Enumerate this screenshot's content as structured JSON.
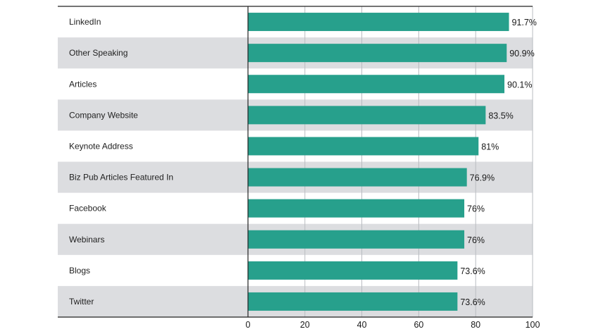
{
  "chart_data": {
    "type": "bar",
    "orientation": "horizontal",
    "categories": [
      "LinkedIn",
      "Other Speaking",
      "Articles",
      "Company Website",
      "Keynote Address",
      "Biz Pub Articles Featured In",
      "Facebook",
      "Webinars",
      "Blogs",
      "Twitter"
    ],
    "values": [
      91.7,
      90.9,
      90.1,
      83.5,
      81,
      76.9,
      76,
      76,
      73.6,
      73.6
    ],
    "value_labels": [
      "91.7%",
      "90.9%",
      "90.1%",
      "83.5%",
      "81%",
      "76.9%",
      "76%",
      "76%",
      "73.6%",
      "73.6%"
    ],
    "xlim": [
      0,
      100
    ],
    "xticks": [
      0,
      20,
      40,
      60,
      80,
      100
    ],
    "xtick_labels": [
      "0",
      "20",
      "40",
      "60",
      "80",
      "100"
    ],
    "grid": "vertical",
    "row_banding": true,
    "colors": {
      "bar": "#27a08c",
      "band": "#dcdde0",
      "grid": "#b9bcc1",
      "axis": "#222222"
    }
  }
}
